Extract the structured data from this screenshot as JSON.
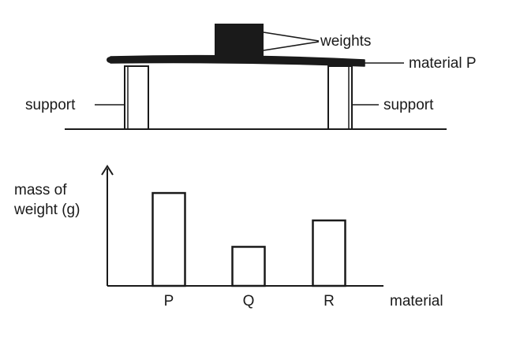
{
  "apparatus": {
    "weights_label": "weights",
    "material_label": "material P",
    "support_left_label": "support",
    "support_right_label": "support"
  },
  "chart": {
    "y_label_line1": "mass of",
    "y_label_line2": "weight (g)",
    "x_label": "material"
  },
  "chart_data": {
    "type": "bar",
    "categories": [
      "P",
      "Q",
      "R"
    ],
    "values": [
      0.88,
      0.37,
      0.62
    ],
    "value_scale": "relative (no numeric axis shown)",
    "ylim": [
      0,
      1
    ],
    "xlabel": "material",
    "ylabel": "mass of weight (g)",
    "grid": false,
    "legend": "none"
  },
  "colors": {
    "ink": "#1a1a1a",
    "background": "#ffffff"
  }
}
